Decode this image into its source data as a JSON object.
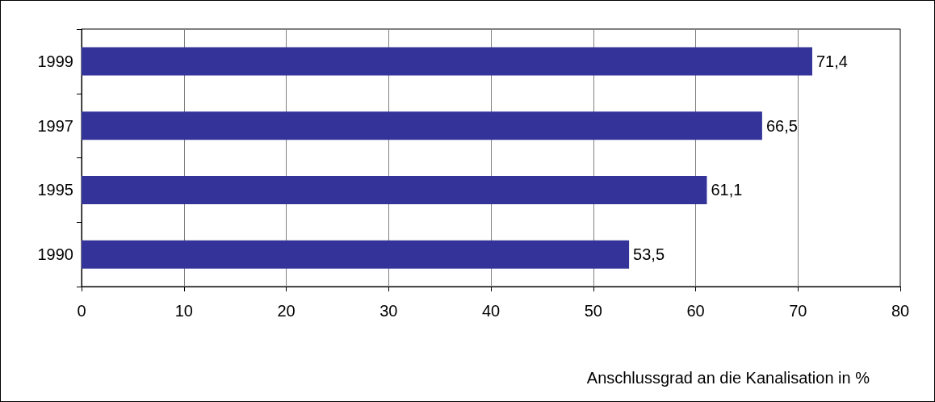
{
  "chart_data": {
    "type": "bar",
    "orientation": "horizontal",
    "xlabel": "Anschlussgrad an die Kanalisation in %",
    "categories": [
      "1999",
      "1997",
      "1995",
      "1990"
    ],
    "values": [
      71.4,
      66.5,
      61.1,
      53.5
    ],
    "color": "#333399",
    "value_labels": [
      "71,4",
      "66,5",
      "61,1",
      "53,5"
    ],
    "xlim": [
      0,
      80
    ],
    "xticks": [
      0,
      10,
      20,
      30,
      40,
      50,
      60,
      70,
      80
    ],
    "grid": "x"
  }
}
